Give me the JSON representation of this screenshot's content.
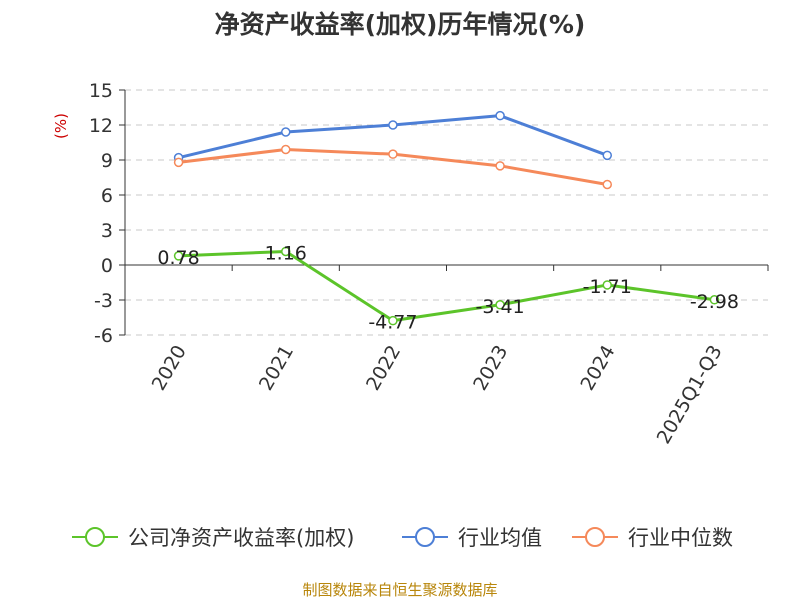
{
  "chart_data": {
    "type": "line",
    "title": "净资产收益率(加权)历年情况(%)",
    "ylabel": "(%)",
    "categories": [
      "2020",
      "2021",
      "2022",
      "2023",
      "2024",
      "2025Q1-Q3"
    ],
    "yticks": [
      15,
      12,
      9,
      6,
      3,
      0,
      -3,
      -6
    ],
    "ylim": [
      -6,
      15
    ],
    "grid": true,
    "legend_position": "bottom",
    "series": [
      {
        "name": "公司净资产收益率(加权)",
        "color": "#5cc42a",
        "values": [
          0.78,
          1.16,
          -4.77,
          -3.41,
          -1.71,
          -2.98
        ],
        "labels": [
          "0.78",
          "1.16",
          "-4.77",
          "-3.41",
          "-1.71",
          "-2.98"
        ]
      },
      {
        "name": "行业均值",
        "color": "#4d7fd6",
        "values": [
          9.2,
          11.4,
          12.0,
          12.8,
          9.4,
          null
        ]
      },
      {
        "name": "行业中位数",
        "color": "#f5895a",
        "values": [
          8.8,
          9.9,
          9.5,
          8.5,
          6.9,
          null
        ]
      }
    ]
  },
  "source": "制图数据来自恒生聚源数据库"
}
